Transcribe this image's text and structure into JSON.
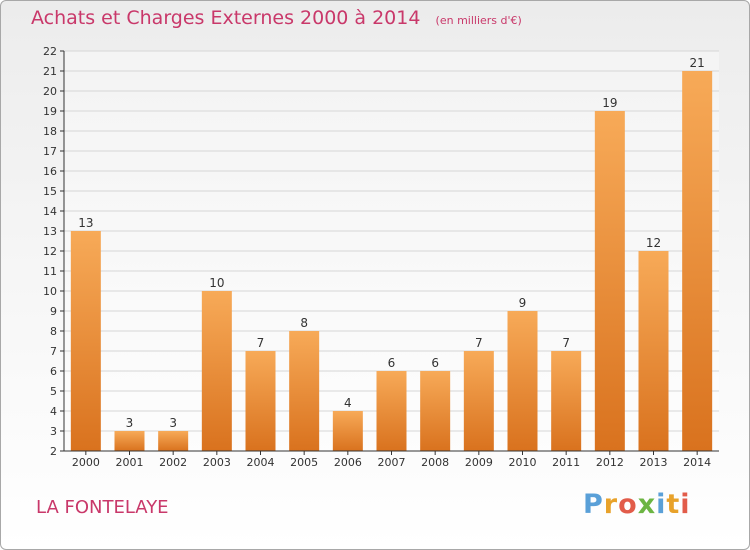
{
  "header": {
    "title": "Achats et Charges Externes 2000 à 2014",
    "unit": "(en milliers d'€)"
  },
  "footer": {
    "place": "LA FONTELAYE",
    "logo_text": "Proxiti",
    "logo_colors": [
      "#5aa0d8",
      "#e8a22a",
      "#e25c4a",
      "#6cb543",
      "#5aa0d8",
      "#e8a22a",
      "#e25c4a"
    ]
  },
  "colors": {
    "bar_light": "#f7aa58",
    "bar_dark": "#d9721e",
    "axis": "#333333",
    "grid": "#d6d6d6",
    "title": "#c9386a"
  },
  "chart_data": {
    "type": "bar",
    "title": "Achats et Charges Externes 2000 à 2014",
    "subtitle": "(en milliers d'€)",
    "categories": [
      "2000",
      "2001",
      "2002",
      "2003",
      "2004",
      "2005",
      "2006",
      "2007",
      "2008",
      "2009",
      "2010",
      "2011",
      "2012",
      "2013",
      "2014"
    ],
    "values": [
      13,
      3,
      3,
      10,
      7,
      8,
      4,
      6,
      6,
      7,
      9,
      7,
      19,
      12,
      21
    ],
    "ylim": [
      2,
      22
    ],
    "yticks": [
      2,
      3,
      4,
      5,
      6,
      7,
      8,
      9,
      10,
      11,
      12,
      13,
      14,
      15,
      16,
      17,
      18,
      19,
      20,
      21,
      22
    ],
    "grid": true,
    "data_labels": true
  }
}
